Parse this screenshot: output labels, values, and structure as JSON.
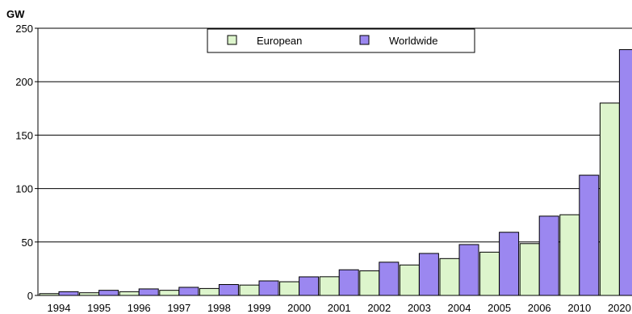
{
  "chart_data": {
    "type": "bar",
    "title": "",
    "xlabel": "",
    "ylabel": "GW",
    "ylim": [
      0,
      250
    ],
    "yticks": [
      0,
      50,
      100,
      150,
      200,
      250
    ],
    "grid": "horizontal",
    "legend_position": "top-center",
    "categories": [
      "1994",
      "1995",
      "1996",
      "1997",
      "1998",
      "1999",
      "2000",
      "2001",
      "2002",
      "2003",
      "2004",
      "2005",
      "2006",
      "2010",
      "2020"
    ],
    "series": [
      {
        "name": "European",
        "color": "#ddf5cc",
        "values": [
          1.7,
          2.5,
          3.5,
          4.8,
          6.5,
          9.7,
          12.8,
          17.5,
          23.0,
          28.5,
          34.5,
          40.5,
          48.5,
          75.5,
          180
        ]
      },
      {
        "name": "Worldwide",
        "color": "#9b87f0",
        "values": [
          3.5,
          4.8,
          6.1,
          7.6,
          10.2,
          13.6,
          17.4,
          24.0,
          31.1,
          39.3,
          47.6,
          59.1,
          74.2,
          112.5,
          230
        ]
      }
    ]
  }
}
